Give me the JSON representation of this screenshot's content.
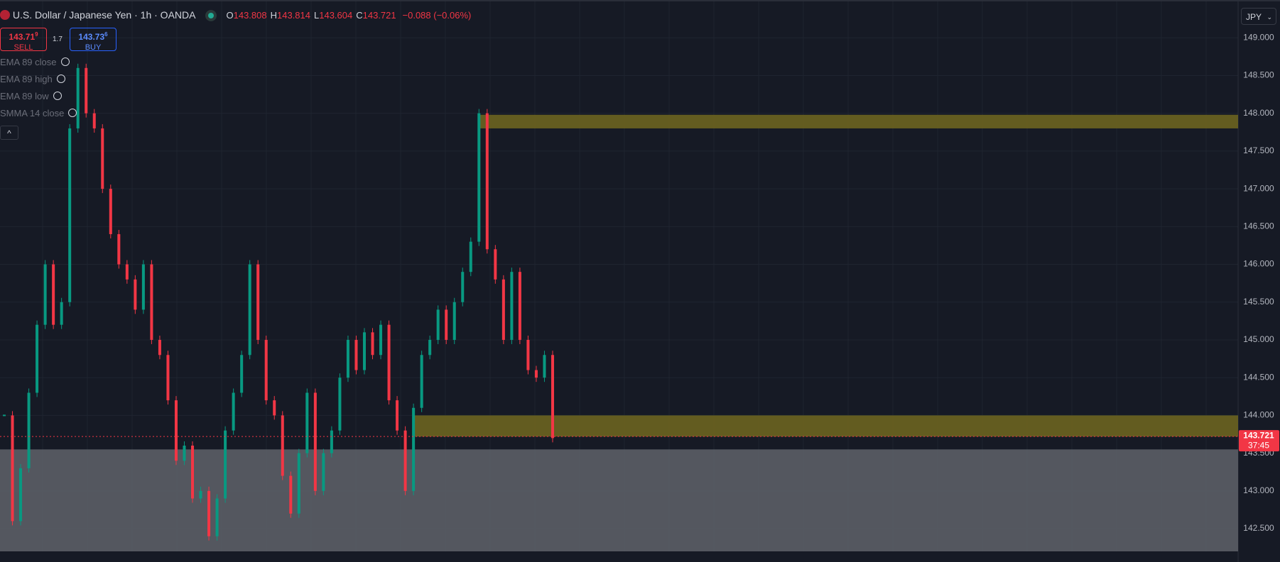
{
  "header": {
    "symbol": "U.S. Dollar / Japanese Yen · 1h · OANDA",
    "ohlc": [
      {
        "key": "O",
        "value": "143.808"
      },
      {
        "key": "H",
        "value": "143.814"
      },
      {
        "key": "L",
        "value": "143.604"
      },
      {
        "key": "C",
        "value": "143.721"
      }
    ],
    "change": "−0.088 (−0.06%)",
    "sell": {
      "main": "143.71",
      "pip": "9",
      "label": "SELL"
    },
    "spread": "1.7",
    "buy": {
      "main": "143.73",
      "pip": "6",
      "label": "BUY"
    },
    "indicators": [
      "EMA 89 close",
      "EMA 89 high",
      "EMA 89 low",
      "SMMA 14 close"
    ],
    "currency": "JPY"
  },
  "chart_data": {
    "type": "candlestick",
    "values": [
      144.0,
      142.6,
      143.3,
      144.3,
      145.2,
      146.0,
      145.2,
      145.5,
      147.8,
      148.6,
      148.0,
      147.8,
      147.0,
      146.4,
      146.0,
      145.8,
      145.4,
      146.0,
      145.0,
      144.8,
      144.2,
      143.4,
      143.6,
      142.9,
      143.0,
      142.4,
      142.9,
      143.8,
      144.3,
      144.8,
      146.0,
      145.0,
      144.2,
      144.0,
      143.2,
      142.7,
      143.5,
      144.3,
      143.0,
      143.5,
      143.8,
      144.5,
      145.0,
      144.6,
      145.1,
      144.8,
      145.2,
      144.2,
      143.8,
      143.0,
      144.1,
      144.8,
      145.0,
      145.4,
      145.0,
      145.5,
      145.9,
      146.3,
      148.0,
      146.2,
      145.8,
      145.0,
      145.9,
      145.0,
      144.6,
      144.5,
      144.8,
      143.7
    ],
    "up_color": "#089981",
    "down_color": "#f23645",
    "ylim": [
      142.2,
      149.5
    ],
    "yticks": [
      {
        "value": 142.5,
        "label": "142.500"
      },
      {
        "value": 143,
        "label": "143.000"
      },
      {
        "value": 143.5,
        "label": "143.500"
      },
      {
        "value": 144,
        "label": "144.000"
      },
      {
        "value": 144.5,
        "label": "144.500"
      },
      {
        "value": 145,
        "label": "145.000"
      },
      {
        "value": 145.5,
        "label": "145.500"
      },
      {
        "value": 146,
        "label": "146.000"
      },
      {
        "value": 146.5,
        "label": "146.500"
      },
      {
        "value": 147,
        "label": "147.000"
      },
      {
        "value": 147.5,
        "label": "147.500"
      },
      {
        "value": 148,
        "label": "148.000"
      },
      {
        "value": 148.5,
        "label": "148.500"
      },
      {
        "value": 149,
        "label": "149.000"
      }
    ],
    "grid": true,
    "zones": [
      {
        "from": 147.8,
        "to": 147.98,
        "start": 58,
        "color": "#6b6420"
      },
      {
        "from": 143.72,
        "to": 144.0,
        "start": 50,
        "color": "#6b6420"
      },
      {
        "from": 142.2,
        "to": 143.55,
        "start": 0,
        "color": "#5b5e66"
      }
    ],
    "last": {
      "value": 143.721,
      "label": "143.721",
      "countdown": "37:45",
      "color": "#f23645"
    }
  }
}
